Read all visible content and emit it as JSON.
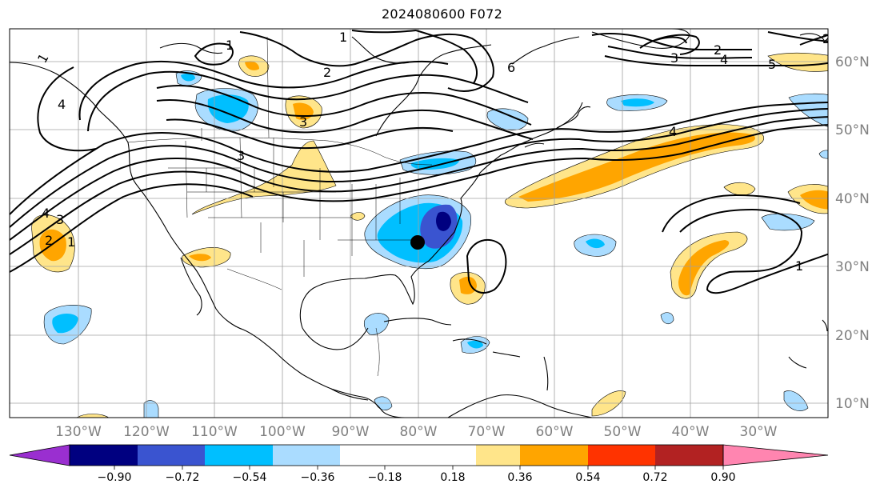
{
  "title": "2024080600 F072",
  "lon_labels": [
    "130°W",
    "120°W",
    "110°W",
    "100°W",
    "90°W",
    "80°W",
    "70°W",
    "60°W",
    "50°W",
    "40°W",
    "30°W"
  ],
  "lat_labels": [
    "60°N",
    "50°N",
    "40°N",
    "30°N",
    "20°N",
    "10°N"
  ],
  "colorbar": {
    "ticks": [
      "−0.90",
      "−0.72",
      "−0.54",
      "−0.36",
      "−0.18",
      "0.18",
      "0.36",
      "0.54",
      "0.72",
      "0.90"
    ],
    "colors": [
      "#9a2fd0",
      "#000080",
      "#3a54d0",
      "#00bfff",
      "#aadcff",
      "#ffffff",
      "#ffe58a",
      "#ffa500",
      "#ff3300",
      "#b22222",
      "#ff85b0"
    ]
  },
  "contour_labels": [
    "1",
    "3",
    "2",
    "1",
    "4",
    "3",
    "2",
    "1",
    "2",
    "4",
    "3",
    "2",
    "4",
    "5",
    "6",
    "3",
    "4",
    "1",
    "1"
  ]
}
